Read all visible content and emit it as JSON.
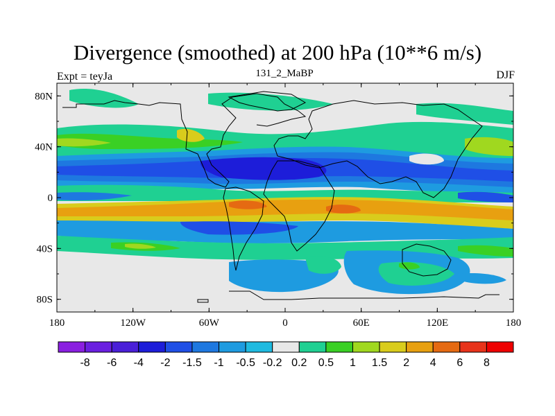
{
  "chart_data": {
    "type": "heatmap",
    "title": "Divergence (smoothed) at 200 hPa (10**6 m/s)",
    "left_subtitle": "Expt = teyJa",
    "center_subtitle": "131_2_MaBP",
    "right_subtitle": "DJF",
    "x_axis": {
      "range": [
        -180,
        180
      ],
      "ticks": [
        -180,
        -120,
        -60,
        0,
        60,
        120,
        180
      ],
      "tick_labels": [
        "180",
        "120W",
        "60W",
        "0",
        "60E",
        "120E",
        "180"
      ]
    },
    "y_axis": {
      "range": [
        -90,
        90
      ],
      "ticks": [
        80,
        40,
        0,
        -40,
        -80
      ],
      "tick_labels": [
        "80N",
        "40N",
        "0",
        "40S",
        "80S"
      ]
    },
    "colorbar": {
      "labels": [
        "-8",
        "-6",
        "-4",
        "-2",
        "-1.5",
        "-1",
        "-0.5",
        "-0.2",
        "0.2",
        "0.5",
        "1",
        "1.5",
        "2",
        "4",
        "6",
        "8"
      ],
      "levels": [
        -8,
        -6,
        -4,
        -2,
        -1.5,
        -1,
        -0.5,
        -0.2,
        0.2,
        0.5,
        1,
        1.5,
        2,
        4,
        6,
        8
      ],
      "colors": [
        "#8a1fe0",
        "#6a1fe0",
        "#4a1fd8",
        "#1d1dd9",
        "#1f4fe6",
        "#1e78e0",
        "#1e9be0",
        "#1fbae0",
        "#e8e8e8",
        "#1fd092",
        "#3ad024",
        "#a0d81f",
        "#d9cc1c",
        "#e8a010",
        "#e56a12",
        "#e8331a",
        "#ee0000"
      ]
    },
    "field": {
      "description_bands": [
        {
          "lat": [
            55,
            75
          ],
          "lon": [
            -180,
            180
          ],
          "level": "0.5 to 1"
        },
        {
          "lat": [
            35,
            50
          ],
          "lon": [
            -180,
            180
          ],
          "level": "0.5 to 1.5"
        },
        {
          "lat": [
            15,
            35
          ],
          "lon": [
            -180,
            180
          ],
          "level": "-2 to -1"
        },
        {
          "lat": [
            0,
            15
          ],
          "lon": [
            -180,
            180
          ],
          "level": "0.2 to 1.5"
        },
        {
          "lat": [
            -15,
            0
          ],
          "lon": [
            -180,
            180
          ],
          "level": "1 to 4"
        },
        {
          "lat": [
            -30,
            -15
          ],
          "lon": [
            -180,
            180
          ],
          "level": "-1 to -0.5"
        },
        {
          "lat": [
            -55,
            -30
          ],
          "lon": [
            -180,
            180
          ],
          "level": "0.5 to 1"
        },
        {
          "lat": [
            -75,
            -55
          ],
          "lon": [
            -60,
            150
          ],
          "level": "-0.5"
        }
      ]
    }
  }
}
